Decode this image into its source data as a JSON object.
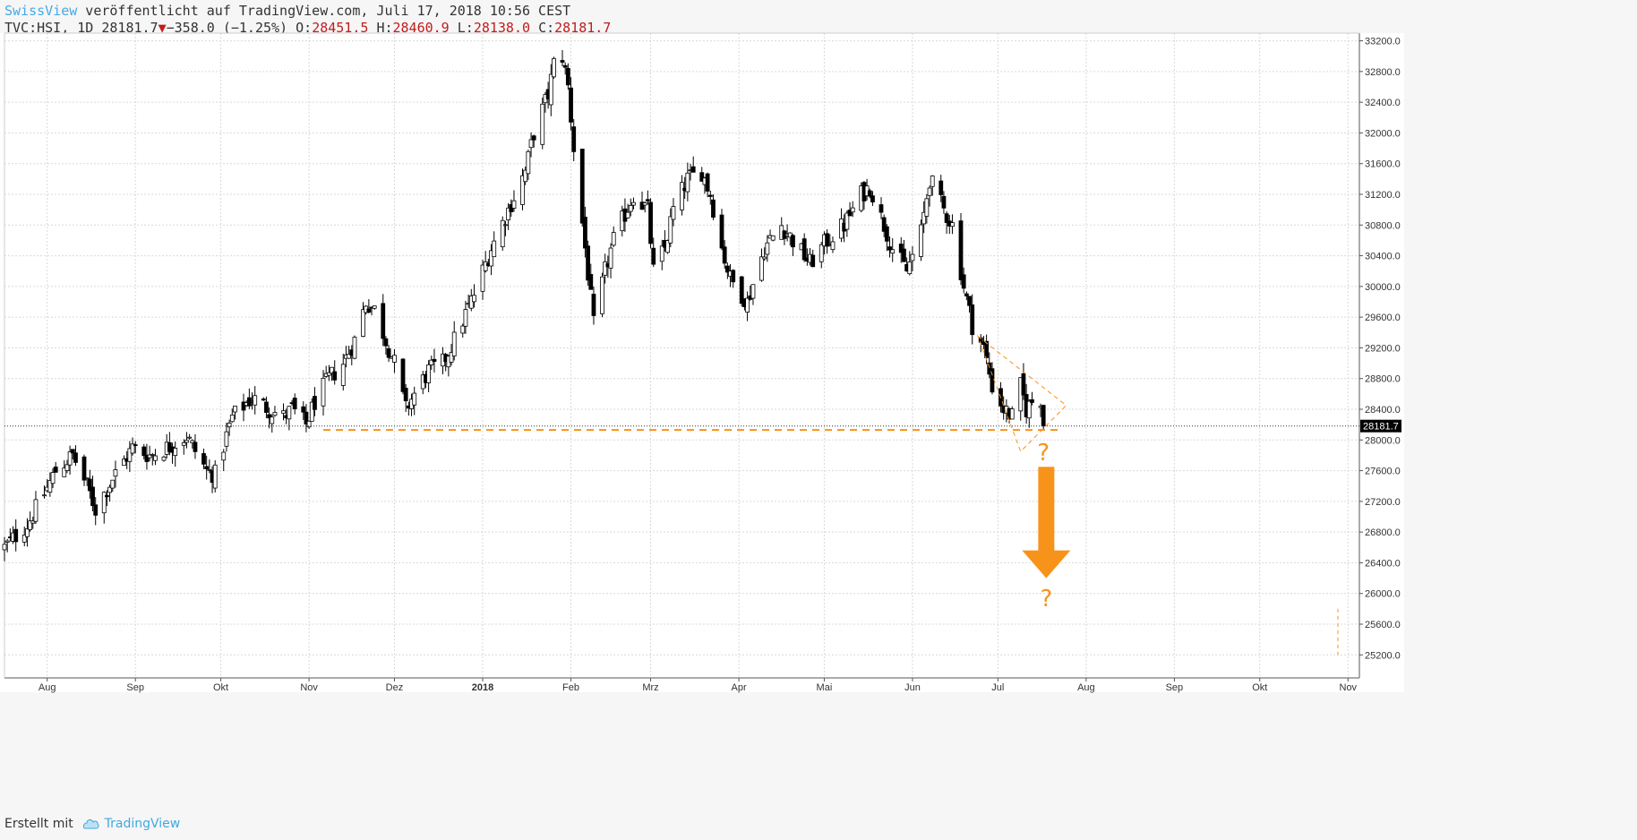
{
  "header": {
    "author": "SwissView",
    "published": " veröffentlicht auf TradingView.com, Juli 17, 2018 10:56 CEST",
    "symbol": "TVC:HSI, 1D 28181.7",
    "change": "−358.0 (−1.25%)",
    "o_label": "O:",
    "o_value": "28451.5",
    "h_label": "H:",
    "h_value": "28460.9",
    "l_label": "L:",
    "l_value": "28138.0",
    "c_label": "C:",
    "c_value": "28181.7"
  },
  "footer": {
    "created_with": "Erstellt mit",
    "brand": "TradingView"
  },
  "colors": {
    "background": "#ffffff",
    "grid": "#d9d9d9",
    "candle": "#000000",
    "annotation": "#f7931a",
    "brand": "#45a9e8",
    "negative": "#c21b1b"
  },
  "chart_data": {
    "type": "candlestick",
    "symbol": "TVC:HSI",
    "interval": "1D",
    "x_range": [
      "2017-07-17",
      "2018-11-05"
    ],
    "ylim": [
      24900,
      33300
    ],
    "y_ticks": [
      25200,
      25600,
      26000,
      26400,
      26800,
      27200,
      27600,
      28000,
      28400,
      28800,
      29200,
      29600,
      30000,
      30400,
      30800,
      31200,
      31600,
      32000,
      32400,
      32800,
      33200
    ],
    "x_ticks": [
      {
        "label": "Aug",
        "date": "2017-08-01"
      },
      {
        "label": "Sep",
        "date": "2017-09-01"
      },
      {
        "label": "Okt",
        "date": "2017-10-01"
      },
      {
        "label": "Nov",
        "date": "2017-11-01"
      },
      {
        "label": "Dez",
        "date": "2017-12-01"
      },
      {
        "label": "2018",
        "date": "2018-01-01"
      },
      {
        "label": "Feb",
        "date": "2018-02-01"
      },
      {
        "label": "Mrz",
        "date": "2018-03-01"
      },
      {
        "label": "Apr",
        "date": "2018-04-01"
      },
      {
        "label": "Mai",
        "date": "2018-05-01"
      },
      {
        "label": "Jun",
        "date": "2018-06-01"
      },
      {
        "label": "Jul",
        "date": "2018-07-01"
      },
      {
        "label": "Aug",
        "date": "2018-08-01"
      },
      {
        "label": "Sep",
        "date": "2018-09-01"
      },
      {
        "label": "Okt",
        "date": "2018-10-01"
      },
      {
        "label": "Nov",
        "date": "2018-11-01"
      }
    ],
    "grid": true,
    "last_price": 28181.7,
    "last_price_label": "28181.7",
    "close_path": [
      [
        "2017-07-17",
        26600
      ],
      [
        "2017-07-25",
        26900
      ],
      [
        "2017-07-31",
        27300
      ],
      [
        "2017-08-04",
        27600
      ],
      [
        "2017-08-10",
        27800
      ],
      [
        "2017-08-15",
        27400
      ],
      [
        "2017-08-18",
        27100
      ],
      [
        "2017-08-24",
        27500
      ],
      [
        "2017-08-31",
        27900
      ],
      [
        "2017-09-06",
        27800
      ],
      [
        "2017-09-12",
        27900
      ],
      [
        "2017-09-19",
        28050
      ],
      [
        "2017-09-26",
        27600
      ],
      [
        "2017-09-29",
        27550
      ],
      [
        "2017-10-05",
        28300
      ],
      [
        "2017-10-12",
        28550
      ],
      [
        "2017-10-18",
        28400
      ],
      [
        "2017-10-23",
        28300
      ],
      [
        "2017-10-26",
        28400
      ],
      [
        "2017-10-31",
        28200
      ],
      [
        "2017-11-03",
        28500
      ],
      [
        "2017-11-08",
        28800
      ],
      [
        "2017-11-13",
        29000
      ],
      [
        "2017-11-17",
        29300
      ],
      [
        "2017-11-21",
        29800
      ],
      [
        "2017-11-24",
        29700
      ],
      [
        "2017-11-28",
        29300
      ],
      [
        "2017-12-01",
        29000
      ],
      [
        "2017-12-05",
        28400
      ],
      [
        "2017-12-08",
        28600
      ],
      [
        "2017-12-13",
        28900
      ],
      [
        "2017-12-18",
        29000
      ],
      [
        "2017-12-22",
        29300
      ],
      [
        "2017-12-29",
        29900
      ],
      [
        "2018-01-04",
        30500
      ],
      [
        "2018-01-10",
        31000
      ],
      [
        "2018-01-16",
        31500
      ],
      [
        "2018-01-19",
        32000
      ],
      [
        "2018-01-24",
        32500
      ],
      [
        "2018-01-26",
        32900
      ],
      [
        "2018-01-29",
        33000
      ],
      [
        "2018-01-31",
        32600
      ],
      [
        "2018-02-02",
        31800
      ],
      [
        "2018-02-06",
        30500
      ],
      [
        "2018-02-09",
        29500
      ],
      [
        "2018-02-13",
        30200
      ],
      [
        "2018-02-16",
        30600
      ],
      [
        "2018-02-23",
        31200
      ],
      [
        "2018-02-28",
        31000
      ],
      [
        "2018-03-02",
        30200
      ],
      [
        "2018-03-06",
        30500
      ],
      [
        "2018-03-09",
        31000
      ],
      [
        "2018-03-14",
        31400
      ],
      [
        "2018-03-19",
        31500
      ],
      [
        "2018-03-22",
        31200
      ],
      [
        "2018-03-26",
        30500
      ],
      [
        "2018-03-29",
        30100
      ],
      [
        "2018-04-04",
        29800
      ],
      [
        "2018-04-10",
        30500
      ],
      [
        "2018-04-16",
        30800
      ],
      [
        "2018-04-20",
        30600
      ],
      [
        "2018-04-26",
        30300
      ],
      [
        "2018-05-02",
        30600
      ],
      [
        "2018-05-08",
        30800
      ],
      [
        "2018-05-14",
        31200
      ],
      [
        "2018-05-17",
        31300
      ],
      [
        "2018-05-22",
        30800
      ],
      [
        "2018-05-25",
        30500
      ],
      [
        "2018-05-30",
        30200
      ],
      [
        "2018-06-04",
        30700
      ],
      [
        "2018-06-07",
        31400
      ],
      [
        "2018-06-12",
        31000
      ],
      [
        "2018-06-15",
        30800
      ],
      [
        "2018-06-19",
        30000
      ],
      [
        "2018-06-22",
        29500
      ],
      [
        "2018-06-26",
        29200
      ],
      [
        "2018-06-29",
        28700
      ],
      [
        "2018-07-03",
        28400
      ],
      [
        "2018-07-06",
        28300
      ],
      [
        "2018-07-09",
        28700
      ],
      [
        "2018-07-11",
        28400
      ],
      [
        "2018-07-13",
        28500
      ],
      [
        "2018-07-16",
        28540
      ],
      [
        "2018-07-17",
        28181.7
      ]
    ],
    "annotations": [
      {
        "type": "horizontal-line",
        "style": "dashed",
        "price": 28130,
        "from": "2017-11-06",
        "to": "2018-07-22"
      },
      {
        "type": "triangle",
        "style": "dashed",
        "points": [
          [
            "2018-06-24",
            29350
          ],
          [
            "2018-07-25",
            28450
          ],
          [
            "2018-07-09",
            27850
          ]
        ]
      },
      {
        "type": "arrow",
        "direction": "down",
        "from": [
          "2018-07-18",
          27650
        ],
        "to": [
          "2018-07-18",
          26200
        ]
      },
      {
        "type": "label",
        "text": "?",
        "at": [
          "2018-07-17",
          27850
        ]
      },
      {
        "type": "label",
        "text": "?",
        "at": [
          "2018-07-18",
          25950
        ]
      }
    ]
  }
}
